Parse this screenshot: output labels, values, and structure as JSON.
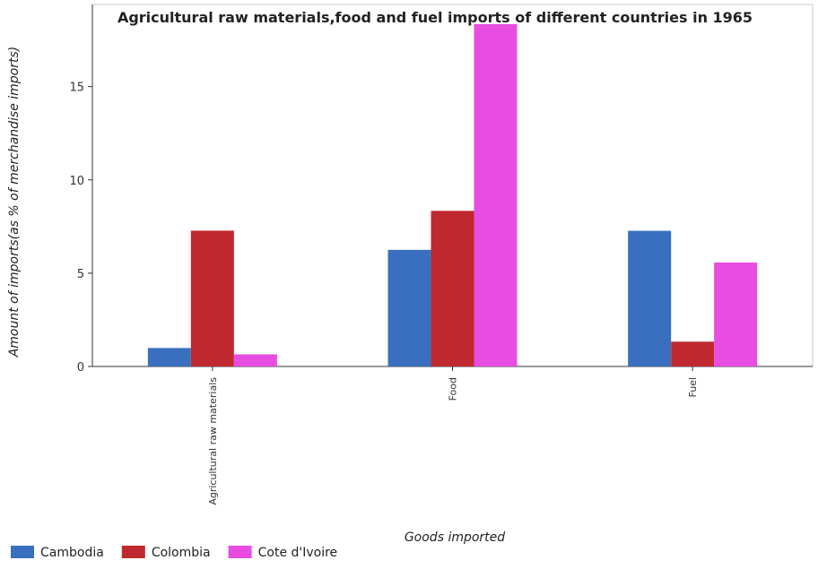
{
  "chart_data": {
    "type": "bar",
    "title": "Agricultural raw materials,food and fuel imports of different countries in 1965",
    "xlabel": "Goods imported",
    "ylabel": "Amount of imports(as % of merchandise imports)",
    "categories": [
      "Agricultural raw materials",
      "Food",
      "Fuel"
    ],
    "series": [
      {
        "name": "Cambodia",
        "color": "#3a6fbf",
        "values": [
          0.99,
          6.25,
          7.27
        ]
      },
      {
        "name": "Colombia",
        "color": "#c0282f",
        "values": [
          7.28,
          8.34,
          1.33
        ]
      },
      {
        "name": "Cote d'Ivoire",
        "color": "#e64de0",
        "values": [
          0.65,
          18.35,
          5.57
        ]
      }
    ],
    "ylim": [
      0,
      19.4
    ],
    "yticks": [
      0,
      5,
      10,
      15
    ],
    "grid": false,
    "legend_position": "bottom-left"
  }
}
